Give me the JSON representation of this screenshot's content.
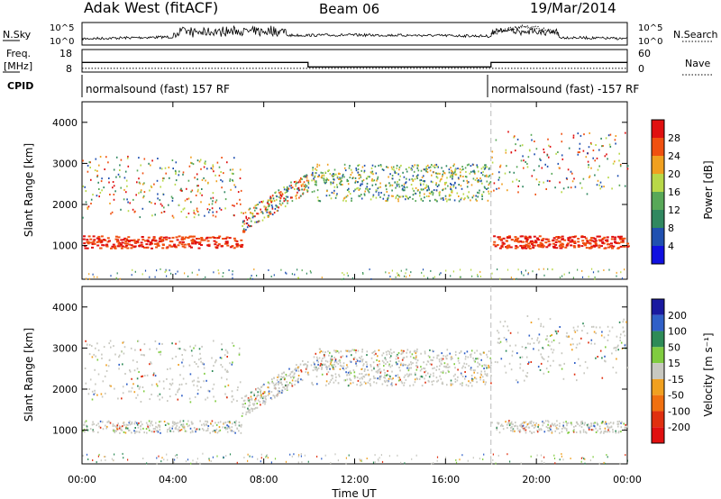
{
  "header": {
    "title": "Adak West (fitACF)",
    "beam": "Beam 06",
    "date": "19/Mar/2014"
  },
  "side_labels": {
    "nsky": "N.Sky",
    "nsearch": "N.Search",
    "freq": "Freq.",
    "freq_unit": "[MHz]",
    "nave": "Nave",
    "cpid": "CPID"
  },
  "cpid_segments": [
    {
      "label": "normalsound (fast) 157 RF",
      "start_hr": 0
    },
    {
      "label": "normalsound (fast) -157 RF",
      "start_hr": 18
    }
  ],
  "chart_data": [
    {
      "type": "line",
      "name": "noise",
      "y_ticks_left": [
        "10^5",
        "10^0"
      ],
      "y_ticks_right": [
        "10^5",
        "10^0"
      ],
      "x_range_hr": [
        0,
        24
      ]
    },
    {
      "type": "line",
      "name": "frequency-nave",
      "y_ticks_left": [
        "18",
        "8"
      ],
      "y_ticks_right": [
        "60",
        "0"
      ],
      "freq_mhz": [
        [
          0,
          12.3
        ],
        [
          9.95,
          12.3
        ],
        [
          9.95,
          10.3
        ],
        [
          18.0,
          10.3
        ],
        [
          18.0,
          12.3
        ],
        [
          24,
          12.3
        ]
      ],
      "nave_level": 10
    },
    {
      "type": "heatmap",
      "name": "power",
      "ylabel": "Slant Range [km]",
      "ylim": [
        180,
        4500
      ],
      "y_ticks": [
        1000,
        2000,
        3000,
        4000
      ],
      "colorbar": {
        "label": "Power [dB]",
        "ticks": [
          "4",
          "8",
          "12",
          "16",
          "20",
          "24",
          "28"
        ],
        "colors": [
          "#1010e0",
          "#2050b0",
          "#308860",
          "#58a858",
          "#b8d848",
          "#f0a020",
          "#f05010",
          "#e01010"
        ]
      }
    },
    {
      "type": "heatmap",
      "name": "velocity",
      "ylabel": "Slant Range [km]",
      "xlabel": "Time UT",
      "ylim": [
        180,
        4500
      ],
      "y_ticks": [
        1000,
        2000,
        3000,
        4000
      ],
      "x_ticks": [
        "00:00",
        "04:00",
        "08:00",
        "12:00",
        "16:00",
        "20:00",
        "00:00"
      ],
      "colorbar": {
        "label": "Velocity [m s⁻¹]",
        "ticks": [
          "200",
          "100",
          "50",
          "15",
          "-15",
          "-50",
          "-100",
          "-200"
        ],
        "colors": [
          "#1a1aa0",
          "#3060c8",
          "#2e8b57",
          "#80cc40",
          "#c8c8c0",
          "#f0a020",
          "#f07010",
          "#e03010",
          "#e01010"
        ]
      }
    }
  ]
}
